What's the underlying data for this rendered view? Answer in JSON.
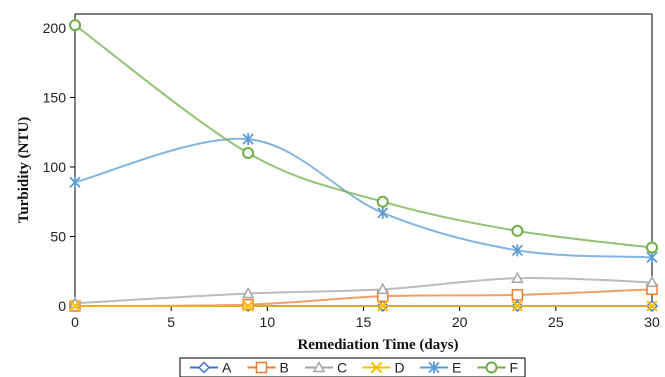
{
  "chart_data": {
    "type": "line",
    "title": "",
    "xlabel": "Remediation Time (days)",
    "ylabel": "Turbidity (NTU)",
    "xlim": [
      0,
      30
    ],
    "ylim": [
      0,
      210
    ],
    "xticks": [
      0,
      5,
      10,
      15,
      20,
      25,
      30
    ],
    "yticks": [
      0,
      50,
      100,
      150,
      200
    ],
    "grid": false,
    "legend_position": "bottom",
    "x": [
      0,
      9,
      16,
      23,
      30
    ],
    "series": [
      {
        "name": "A",
        "values": [
          0,
          0,
          0,
          0,
          0
        ],
        "color": "#4472C4",
        "marker": "diamond"
      },
      {
        "name": "B",
        "values": [
          0,
          1,
          7,
          8,
          12
        ],
        "color": "#ED7D31",
        "marker": "square"
      },
      {
        "name": "C",
        "values": [
          2,
          9,
          12,
          20,
          17
        ],
        "color": "#A5A5A5",
        "marker": "triangle"
      },
      {
        "name": "D",
        "values": [
          0,
          0,
          0,
          0,
          0
        ],
        "color": "#FFC000",
        "marker": "x"
      },
      {
        "name": "E",
        "values": [
          89,
          120,
          67,
          40,
          35
        ],
        "color": "#5B9BD5",
        "marker": "star"
      },
      {
        "name": "F",
        "values": [
          202,
          110,
          75,
          54,
          42
        ],
        "color": "#70AD47",
        "marker": "circle"
      }
    ]
  }
}
